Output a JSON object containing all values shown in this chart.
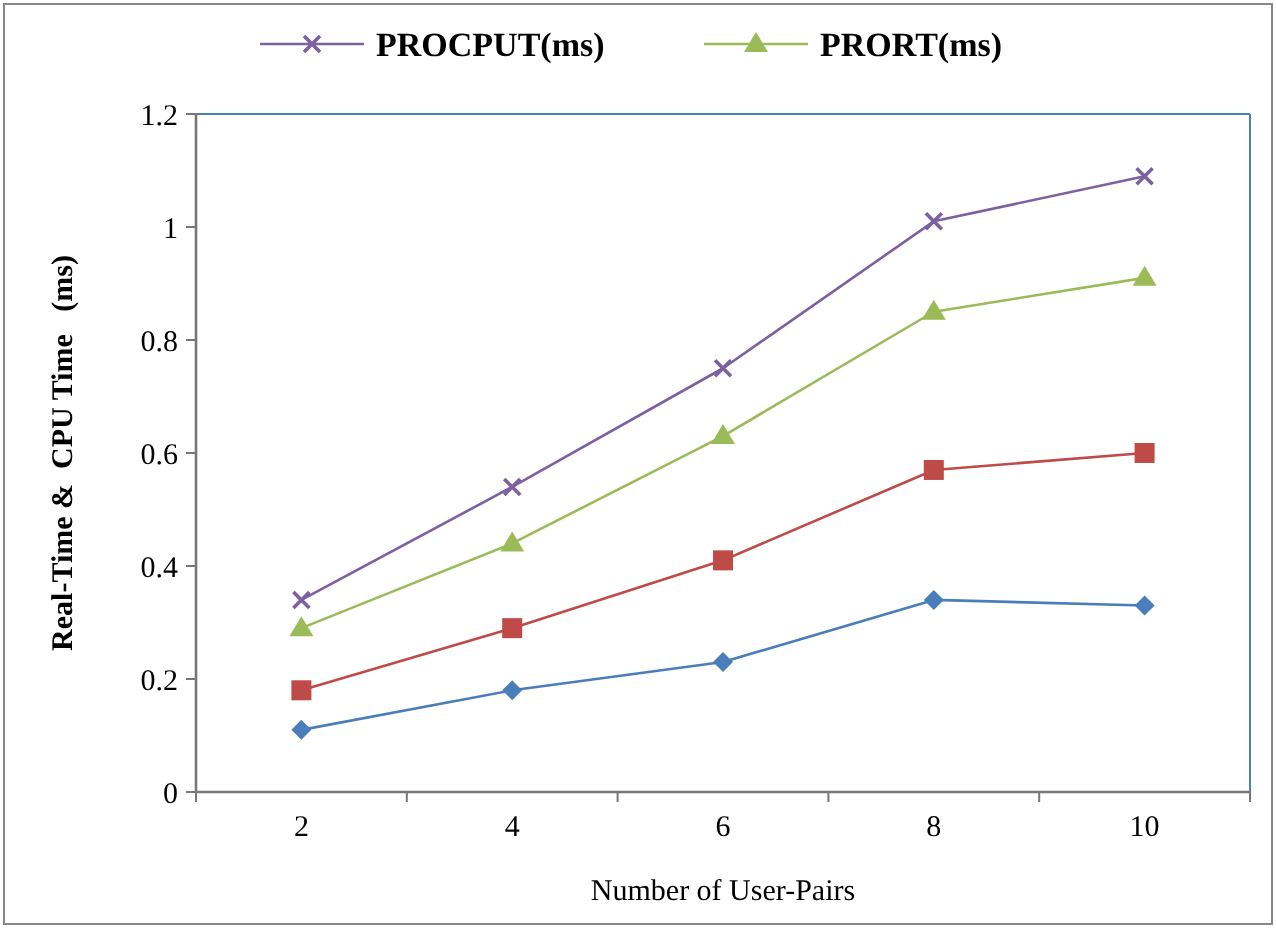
{
  "chart_data": {
    "type": "line",
    "xlabel": "Number of User-Pairs",
    "ylabel": "Real-Time &  CPU Time   (ms)",
    "categories": [
      "2",
      "4",
      "6",
      "8",
      "10"
    ],
    "series": [
      {
        "color": "#4a7ebb",
        "marker": "diamond",
        "values": [
          0.11,
          0.18,
          0.23,
          0.34,
          0.33
        ]
      },
      {
        "color": "#be4b48",
        "marker": "square",
        "values": [
          0.18,
          0.29,
          0.41,
          0.57,
          0.6
        ]
      },
      {
        "name": "PRORT(ms)",
        "color": "#9bbb59",
        "marker": "triangle",
        "values": [
          0.29,
          0.44,
          0.63,
          0.85,
          0.91
        ]
      },
      {
        "name": "PROCPUT(ms)",
        "color": "#7d60a0",
        "marker": "cross",
        "values": [
          0.34,
          0.54,
          0.75,
          1.01,
          1.09
        ]
      }
    ],
    "ylim": [
      0,
      1.2
    ],
    "yticks": [
      0,
      0.2,
      0.4,
      0.6,
      0.8,
      1,
      1.2
    ],
    "grid": false,
    "legend": "top"
  }
}
